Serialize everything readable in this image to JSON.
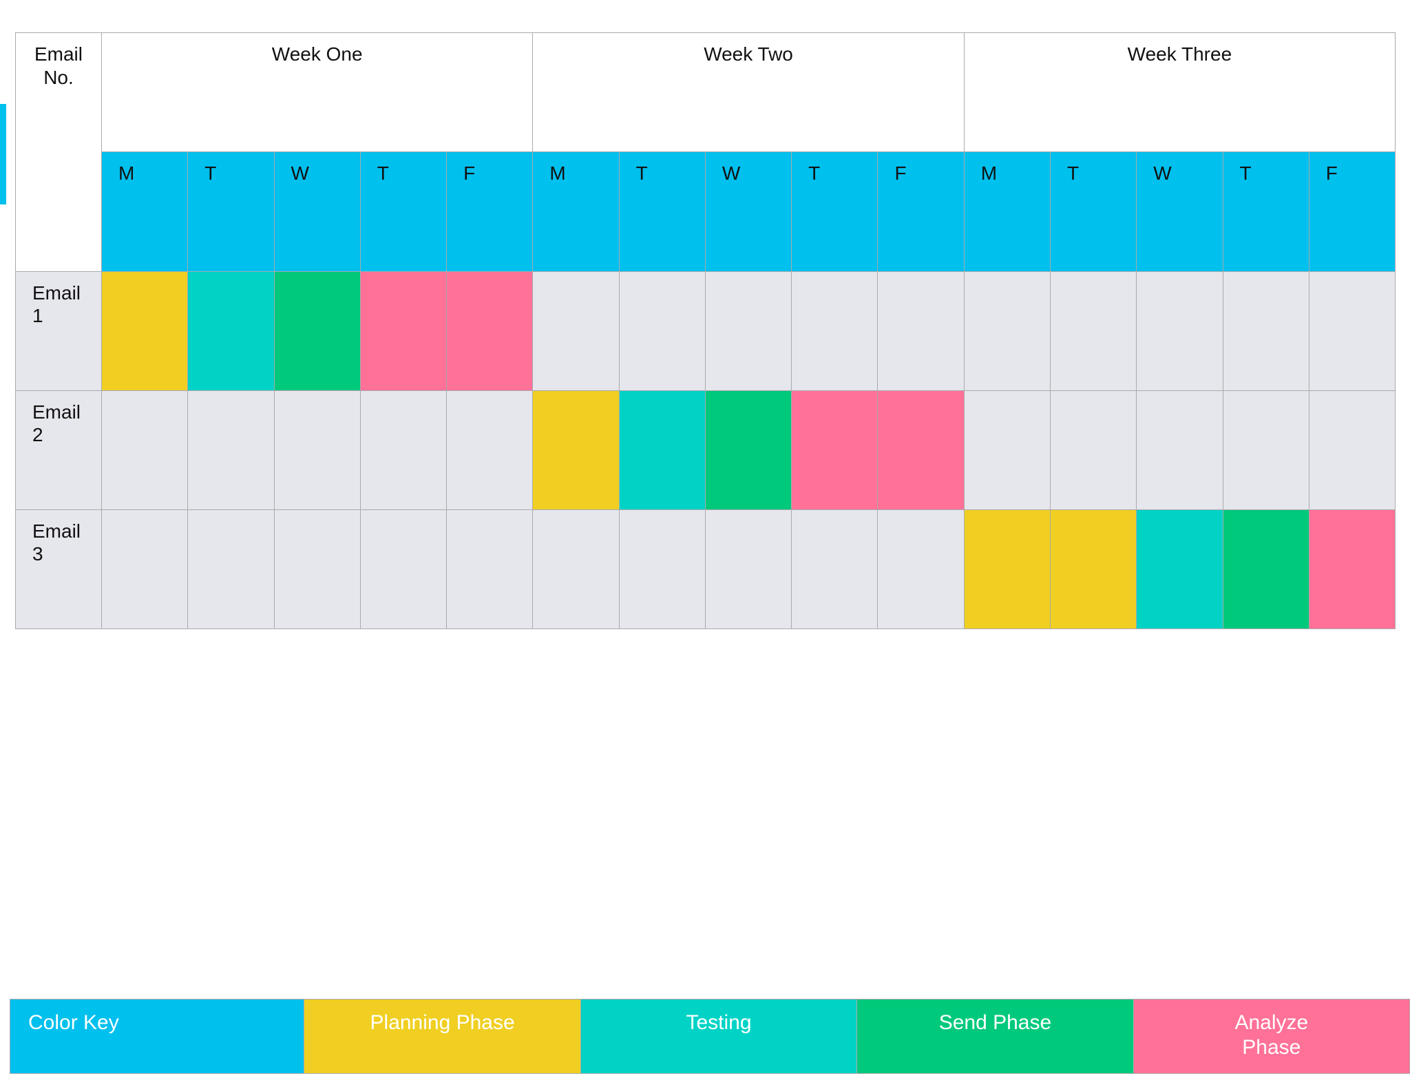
{
  "schedule": {
    "corner_label": [
      "Email",
      "No."
    ],
    "weeks": [
      "Week One",
      "Week Two",
      "Week Three"
    ],
    "days": [
      "M",
      "T",
      "W",
      "T",
      "F"
    ],
    "emails": [
      {
        "label": [
          "Email",
          "1"
        ],
        "cells": [
          "planning",
          "testing",
          "send",
          "analyze",
          "analyze",
          "",
          "",
          "",
          "",
          "",
          "",
          "",
          "",
          "",
          ""
        ]
      },
      {
        "label": [
          "Email",
          "2"
        ],
        "cells": [
          "",
          "",
          "",
          "",
          "",
          "planning",
          "testing",
          "send",
          "analyze",
          "analyze",
          "",
          "",
          "",
          "",
          ""
        ]
      },
      {
        "label": [
          "Email",
          "3"
        ],
        "cells": [
          "",
          "",
          "",
          "",
          "",
          "",
          "",
          "",
          "",
          "",
          "planning",
          "planning",
          "testing",
          "send",
          "analyze"
        ]
      }
    ]
  },
  "colors": {
    "header_blue": "#00c0ee",
    "planning": "#f0cf22",
    "testing": "#00d3c6",
    "send": "#00c97c",
    "analyze": "#ff7197",
    "empty": "#e6e6ed"
  },
  "color_key": {
    "title": "Color Key",
    "items": [
      {
        "id": "planning",
        "label": "Planning Phase"
      },
      {
        "id": "testing",
        "label": "Testing"
      },
      {
        "id": "send",
        "label": "Send Phase"
      },
      {
        "id": "analyze",
        "label": "Analyze Phase"
      }
    ]
  }
}
